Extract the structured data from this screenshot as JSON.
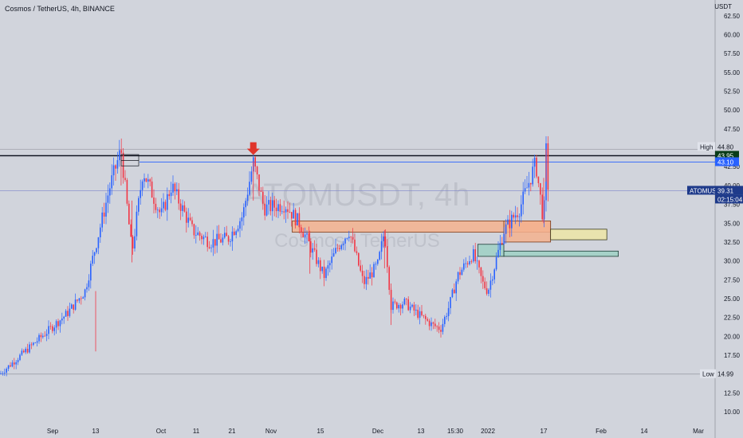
{
  "header": {
    "symbol_title": "Cosmos / TetherUS, 4h, BINANCE",
    "currency": "USDT"
  },
  "watermark": {
    "symbol": "ATOMUSDT, 4h",
    "name": "Cosmos / TetherUS"
  },
  "colors": {
    "background": "#d1d4dc",
    "up_candle": "#2962ff",
    "down_candle": "#f23645",
    "high_line": "#131722",
    "level_line": "#2962ff",
    "orange_zone": "#f5b28e",
    "yellow_zone": "#ede5a6",
    "teal_zone": "#9fd0c4",
    "arrow": "#e0352b",
    "price_label_bg": "#1e3a8a",
    "green_label_bg": "#0a3d1a"
  },
  "chart_data": {
    "type": "candlestick",
    "title": "Cosmos / TetherUS, 4h, BINANCE",
    "ylabel": "USDT",
    "ylim": [
      8.5,
      65.0
    ],
    "y_ticks": [
      "62.50",
      "60.00",
      "57.50",
      "55.00",
      "52.50",
      "50.00",
      "47.50",
      "42.50",
      "40.00",
      "37.50",
      "35.00",
      "32.50",
      "30.00",
      "27.50",
      "25.00",
      "22.50",
      "20.00",
      "17.50",
      "12.50",
      "10.00"
    ],
    "x_ticks": [
      "Sep",
      "13",
      "Oct",
      "11",
      "21",
      "Nov",
      "15",
      "Dec",
      "13",
      "15:30",
      "2022",
      "17",
      "Feb",
      "14",
      "Mar"
    ],
    "price_trend": [
      {
        "date": "Aug 30",
        "price": 15.0
      },
      {
        "date": "Sep 5",
        "price": 23.0
      },
      {
        "date": "Sep 10",
        "price": 26.0
      },
      {
        "date": "Sep 13",
        "price": 32.0
      },
      {
        "date": "Sep 17",
        "price": 40.0
      },
      {
        "date": "Sep 20",
        "price": 44.8
      },
      {
        "date": "Sep 23",
        "price": 31.0
      },
      {
        "date": "Sep 26",
        "price": 42.0
      },
      {
        "date": "Oct 1",
        "price": 36.0
      },
      {
        "date": "Oct 4",
        "price": 40.0
      },
      {
        "date": "Oct 10",
        "price": 34.0
      },
      {
        "date": "Oct 15",
        "price": 32.5
      },
      {
        "date": "Oct 20",
        "price": 33.0
      },
      {
        "date": "Oct 24",
        "price": 36.0
      },
      {
        "date": "Oct 27",
        "price": 43.1
      },
      {
        "date": "Oct 30",
        "price": 37.0
      },
      {
        "date": "Nov 5",
        "price": 37.5
      },
      {
        "date": "Nov 9",
        "price": 35.0
      },
      {
        "date": "Nov 12",
        "price": 32.0
      },
      {
        "date": "Nov 16",
        "price": 28.0
      },
      {
        "date": "Nov 20",
        "price": 32.0
      },
      {
        "date": "Nov 23",
        "price": 34.0
      },
      {
        "date": "Nov 27",
        "price": 27.0
      },
      {
        "date": "Dec 1",
        "price": 29.5
      },
      {
        "date": "Dec 3",
        "price": 34.0
      },
      {
        "date": "Dec 5",
        "price": 24.0
      },
      {
        "date": "Dec 9",
        "price": 24.5
      },
      {
        "date": "Dec 13",
        "price": 23.0
      },
      {
        "date": "Dec 18",
        "price": 21.5
      },
      {
        "date": "Dec 21",
        "price": 21.0
      },
      {
        "date": "Dec 24",
        "price": 24.0
      },
      {
        "date": "Dec 27",
        "price": 28.0
      },
      {
        "date": "Dec 30",
        "price": 31.0
      },
      {
        "date": "Jan 1",
        "price": 27.0
      },
      {
        "date": "Jan 2",
        "price": 26.0
      },
      {
        "date": "Jan 4",
        "price": 34.0
      },
      {
        "date": "Jan 6",
        "price": 37.0
      },
      {
        "date": "Jan 8",
        "price": 43.0
      },
      {
        "date": "Jan 9",
        "price": 35.0
      },
      {
        "date": "Jan 10",
        "price": 44.8
      },
      {
        "date": "Jan 11",
        "price": 39.31
      }
    ],
    "levels": {
      "high": 44.8,
      "low": 14.99,
      "resistance": 43.1,
      "last_price": 39.31,
      "black_line": 43.95
    },
    "axis_labels": {
      "high_label": "High",
      "high_value": "44.80",
      "black_value": "43.95",
      "resistance_value": "43.10",
      "symbol_label": "ATOMUSDT",
      "last_value": "39.31",
      "countdown": "02:15:04",
      "low_label": "Low",
      "low_value": "14.99"
    },
    "zones": [
      {
        "name": "orange",
        "x_from": "Nov 7",
        "x_to": "Jan 12",
        "y_from": 33.8,
        "y_to": 35.3
      },
      {
        "name": "orange-small",
        "x_from": "Jan 4",
        "x_to": "Jan 12",
        "y_from": 32.5,
        "y_to": 35.3
      },
      {
        "name": "yellow",
        "x_from": "Jan 12",
        "x_to": "Feb 5",
        "y_from": 32.8,
        "y_to": 34.2
      },
      {
        "name": "teal",
        "x_from": "Jan 4",
        "x_to": "Feb 9",
        "y_from": 30.6,
        "y_to": 31.3
      },
      {
        "name": "teal-small",
        "x_from": "Dec 31",
        "x_to": "Jan 4",
        "y_from": 30.6,
        "y_to": 32.2
      }
    ],
    "marker": {
      "type": "down-arrow",
      "date": "Oct 27",
      "price": 43.2
    }
  }
}
